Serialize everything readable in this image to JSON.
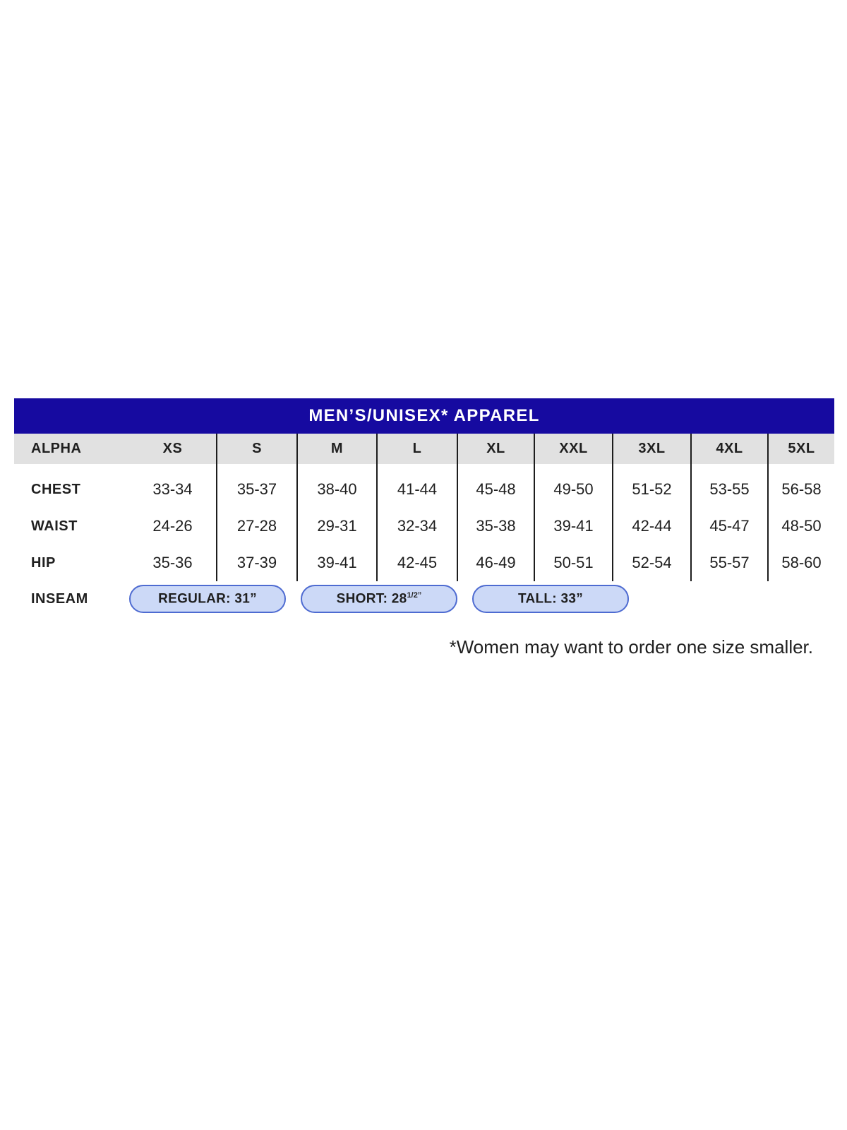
{
  "colors": {
    "header_bg": "#160AA0",
    "subheader_bg": "#E1E1E1",
    "pill_bg": "#CCD9F7",
    "pill_border": "#4E6BD1",
    "line": "#1D1D1D",
    "text": "#1F1F1F"
  },
  "title": "MEN’S/UNISEX* APPAREL",
  "table": {
    "corner_label": "ALPHA",
    "columns": [
      "XS",
      "S",
      "M",
      "L",
      "XL",
      "XXL",
      "3XL",
      "4XL",
      "5XL"
    ],
    "rows": [
      {
        "label": "CHEST",
        "values": [
          "33-34",
          "35-37",
          "38-40",
          "41-44",
          "45-48",
          "49-50",
          "51-52",
          "53-55",
          "56-58"
        ]
      },
      {
        "label": "WAIST",
        "values": [
          "24-26",
          "27-28",
          "29-31",
          "32-34",
          "35-38",
          "39-41",
          "42-44",
          "45-47",
          "48-50"
        ]
      },
      {
        "label": "HIP",
        "values": [
          "35-36",
          "37-39",
          "39-41",
          "42-45",
          "46-49",
          "50-51",
          "52-54",
          "55-57",
          "58-60"
        ]
      }
    ]
  },
  "inseam": {
    "label": "INSEAM",
    "pills": [
      {
        "prefix": "REGULAR: 31”",
        "sup": "",
        "suffix": ""
      },
      {
        "prefix": "SHORT: 28",
        "sup": "1/2”",
        "suffix": ""
      },
      {
        "prefix": "TALL: 33”",
        "sup": "",
        "suffix": ""
      }
    ]
  },
  "footnote": "*Women may want to order one size smaller."
}
